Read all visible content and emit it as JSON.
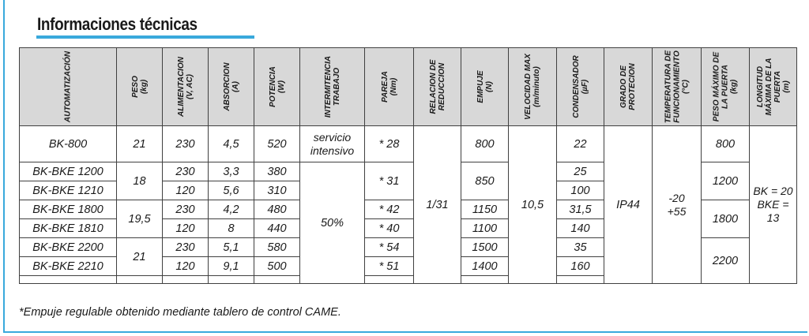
{
  "title": "Informaciones técnicas",
  "headers": [
    {
      "label": "AUTOMATIZACIÓN",
      "unit": ""
    },
    {
      "label": "PESO",
      "unit": "(kg)"
    },
    {
      "label": "ALIMENTACION",
      "unit": "(V, AC)"
    },
    {
      "label": "ABSORCION",
      "unit": "(A)"
    },
    {
      "label": "POTENCIA",
      "unit": "(W)"
    },
    {
      "label": "INTERMITENCIA TRABAJO",
      "unit": ""
    },
    {
      "label": "PAREJA",
      "unit": "(Nm)"
    },
    {
      "label": "RELACION DE REDUCCION",
      "unit": ""
    },
    {
      "label": "EMPUJE",
      "unit": "(N)"
    },
    {
      "label": "VELOCIDAD MAX",
      "unit": "(m/minuto)"
    },
    {
      "label": "CONDENSADOR",
      "unit": "(µF)"
    },
    {
      "label": "GRADO DE PROTECION",
      "unit": ""
    },
    {
      "label": "TEMPERATURA DE FUNCIONAMIENTO",
      "unit": "(°C)"
    },
    {
      "label": "PESO MÁXIMO DE LA PUERTA",
      "unit": "(kg)"
    },
    {
      "label": "LONGITUD MÁXIMA DE LA PUERTA",
      "unit": "(m)"
    }
  ],
  "rows": [
    {
      "model": "BK-800",
      "alim": "230",
      "abs": "4,5",
      "pot": "520",
      "pareja": "* 28",
      "empuje": "800",
      "cond": "22"
    },
    {
      "model": "BK-BKE 1200",
      "alim": "230",
      "abs": "3,3",
      "pot": "380",
      "empuje": "850",
      "cond": "25"
    },
    {
      "model": "BK-BKE 1210",
      "alim": "120",
      "abs": "5,6",
      "pot": "310",
      "cond": "100"
    },
    {
      "model": "BK-BKE 1800",
      "alim": "230",
      "abs": "4,2",
      "pot": "480",
      "pareja": "* 42",
      "empuje": "1150",
      "cond": "31,5"
    },
    {
      "model": "BK-BKE 1810",
      "alim": "120",
      "abs": "8",
      "pot": "440",
      "pareja": "* 40",
      "empuje": "1100",
      "cond": "140"
    },
    {
      "model": "BK-BKE 2200",
      "alim": "230",
      "abs": "5,1",
      "pot": "580",
      "pareja": "* 54",
      "empuje": "1500",
      "cond": "35"
    },
    {
      "model": "BK-BKE 2210",
      "alim": "120",
      "abs": "9,1",
      "pot": "500",
      "pareja": "* 51",
      "empuje": "1400",
      "cond": "160"
    }
  ],
  "merged": {
    "peso_800": "21",
    "peso_12xx": "18",
    "peso_18xx": "19,5",
    "peso_22xx": "21",
    "inter_800": "servicio intensivo",
    "inter_rest": "50%",
    "pareja_12xx": "* 31",
    "relacion": "1/31",
    "velocidad": "10,5",
    "proteccion": "IP44",
    "temp_line1": "-20",
    "temp_line2": "+55",
    "pesomax_800": "800",
    "pesomax_12xx": "1200",
    "pesomax_18xx": "1800",
    "pesomax_22xx": "2200",
    "long_line1": "BK = 20",
    "long_line2": "BKE = 13"
  },
  "footnote": "*Empuje regulable obtenido mediante tablero de control CAME.",
  "colors": {
    "accent": "#39a9dc",
    "header_bg": "#d8d8d8",
    "border": "#404040"
  }
}
